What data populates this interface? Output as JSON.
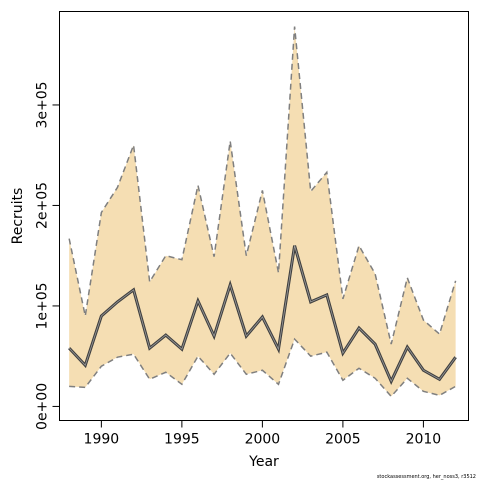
{
  "chart_data": {
    "type": "area",
    "xlabel": "Year",
    "ylabel": "Recruits",
    "xlim": [
      1987.4,
      2012.8
    ],
    "ylim": [
      -14000,
      393000
    ],
    "x_ticks": [
      1990,
      1995,
      2000,
      2005,
      2010
    ],
    "x_tick_labels": [
      "1990",
      "1995",
      "2000",
      "2005",
      "2010"
    ],
    "y_ticks": [
      0,
      100000,
      200000,
      300000
    ],
    "y_tick_labels": [
      "0e+00",
      "1e+05",
      "2e+05",
      "3e+05"
    ],
    "grid": false,
    "years": [
      1988,
      1989,
      1990,
      1991,
      1992,
      1993,
      1994,
      1995,
      1996,
      1997,
      1998,
      1999,
      2000,
      2001,
      2002,
      2003,
      2004,
      2005,
      2006,
      2007,
      2008,
      2009,
      2010,
      2011,
      2012
    ],
    "series": [
      {
        "role": "estimate",
        "values": [
          58000,
          41000,
          90000,
          104000,
          116000,
          58000,
          71000,
          57000,
          105000,
          70000,
          121000,
          70000,
          89000,
          57000,
          160000,
          104000,
          111000,
          53000,
          78000,
          62000,
          25000,
          59000,
          36000,
          27000,
          49000
        ]
      },
      {
        "role": "lower",
        "values": [
          20000,
          19000,
          40000,
          49000,
          52000,
          27000,
          34000,
          22000,
          50000,
          32000,
          53000,
          32000,
          36000,
          22000,
          67000,
          50000,
          54000,
          26000,
          38000,
          28000,
          10000,
          28000,
          15000,
          11000,
          20000
        ]
      },
      {
        "role": "upper",
        "values": [
          167000,
          90000,
          193000,
          218000,
          260000,
          124000,
          150000,
          146000,
          220000,
          149000,
          264000,
          150000,
          215000,
          133000,
          378000,
          214000,
          233000,
          107000,
          160000,
          132000,
          62000,
          128000,
          86000,
          72000,
          125000
        ]
      }
    ],
    "colors": {
      "band_fill": "#f5deb3",
      "band_edge": "#7f7f7f",
      "line": "#404040"
    }
  },
  "credit": "stockassessment.org, her_noss3, r3512"
}
